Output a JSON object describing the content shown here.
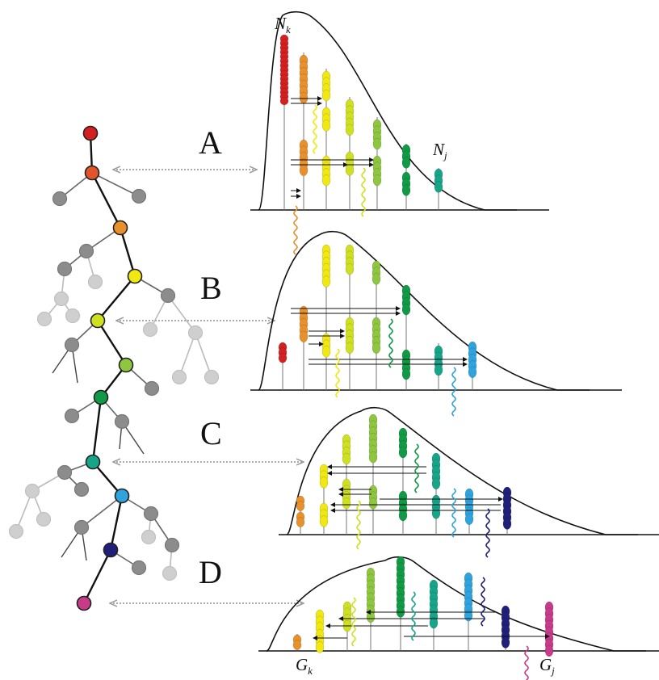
{
  "panels": [
    {
      "letter": "A"
    },
    {
      "letter": "B"
    },
    {
      "letter": "C"
    },
    {
      "letter": "D"
    }
  ],
  "symbols": {
    "N_k": {
      "main": "N",
      "sub": "k"
    },
    "N_j": {
      "main": "N",
      "sub": "j"
    },
    "G_k": {
      "main": "G",
      "sub": "k"
    },
    "G_j": {
      "main": "G",
      "sub": "j"
    }
  },
  "colors": {
    "red": "#d42020",
    "orange_red": "#e2552a",
    "orange": "#e8902c",
    "yellow": "#f0e810",
    "yellow_green": "#cfe020",
    "light_green": "#8ec63f",
    "green": "#119a45",
    "teal": "#17a589",
    "blue": "#2ea3dd",
    "navy": "#20207a",
    "magenta": "#c83a8a",
    "gray": "#8c8c8c",
    "light_gray": "#cfcfcf",
    "line": "#222222",
    "arrow_dash": "#aaaaaa"
  }
}
